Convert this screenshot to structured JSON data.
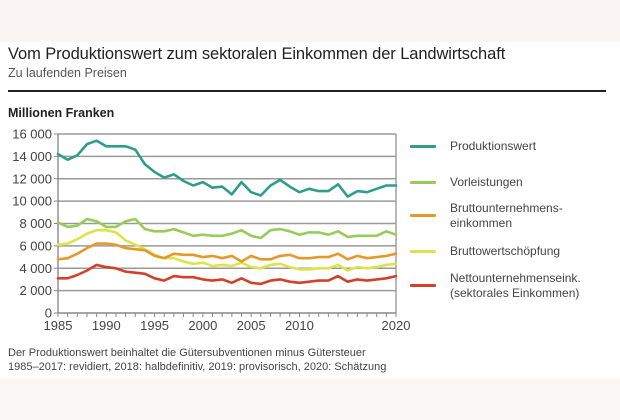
{
  "header": {
    "title": "Vom Produktionswert zum sektoralen Einkommen der Landwirtschaft",
    "subtitle": "Zu laufenden Preisen",
    "unit": "Millionen Franken"
  },
  "footnotes": [
    "Der Produktionswert beinhaltet die Gütersubventionen minus Gütersteuer",
    "1985–2017: revidiert, 2018: halbdefinitiv, 2019: provisorisch, 2020: Schätzung"
  ],
  "chart_data": {
    "type": "line",
    "title": "Vom Produktionswert zum sektoralen Einkommen der Landwirtschaft",
    "subtitle": "Zu laufenden Preisen",
    "xlabel": "",
    "ylabel": "Millionen Franken",
    "xlim": [
      1985,
      2020
    ],
    "ylim": [
      0,
      16000
    ],
    "grid": true,
    "legend_position": "right",
    "x": [
      1985,
      1986,
      1987,
      1988,
      1989,
      1990,
      1991,
      1992,
      1993,
      1994,
      1995,
      1996,
      1997,
      1998,
      1999,
      2000,
      2001,
      2002,
      2003,
      2004,
      2005,
      2006,
      2007,
      2008,
      2009,
      2010,
      2011,
      2012,
      2013,
      2014,
      2015,
      2016,
      2017,
      2018,
      2019,
      2020
    ],
    "x_ticks": [
      {
        "value": 1985,
        "label": "1985"
      },
      {
        "value": 1990,
        "label": "1990"
      },
      {
        "value": 1995,
        "label": "1995"
      },
      {
        "value": 2000,
        "label": "2000"
      },
      {
        "value": 2005,
        "label": "2005"
      },
      {
        "value": 2010,
        "label": "2010"
      },
      {
        "value": 2020,
        "label": "2020"
      }
    ],
    "y_ticks": [
      {
        "value": 0,
        "label": "0"
      },
      {
        "value": 2000,
        "label": "2 000"
      },
      {
        "value": 4000,
        "label": "4 000"
      },
      {
        "value": 6000,
        "label": "6 000"
      },
      {
        "value": 8000,
        "label": "8 000"
      },
      {
        "value": 10000,
        "label": "10 000"
      },
      {
        "value": 12000,
        "label": "12 000"
      },
      {
        "value": 14000,
        "label": "14 000"
      },
      {
        "value": 16000,
        "label": "16 000"
      }
    ],
    "series": [
      {
        "name": "Produktionswert",
        "legend_label": "Produktionswert",
        "color": "#2e9e8a",
        "values": [
          14200,
          13700,
          14100,
          15100,
          15400,
          14900,
          14900,
          14900,
          14600,
          13300,
          12600,
          12100,
          12400,
          11800,
          11400,
          11700,
          11200,
          11300,
          10600,
          11700,
          10800,
          10500,
          11400,
          11900,
          11300,
          10800,
          11100,
          10900,
          10900,
          11500,
          10400,
          10900,
          10800,
          11100,
          11400,
          11400
        ]
      },
      {
        "name": "Vorleistungen",
        "legend_label": "Vorleistungen",
        "color": "#97cc5a",
        "values": [
          8100,
          7700,
          7800,
          8400,
          8200,
          7700,
          7700,
          8200,
          8400,
          7500,
          7300,
          7300,
          7500,
          7200,
          6900,
          7000,
          6900,
          6900,
          7100,
          7400,
          6900,
          6700,
          7400,
          7500,
          7300,
          7000,
          7200,
          7200,
          7000,
          7300,
          6800,
          6900,
          6900,
          6900,
          7300,
          7000
        ]
      },
      {
        "name": "Bruttounternehmenseinkommen",
        "legend_label": "Bruttounternehmens-\neinkommen",
        "color": "#e39a2a",
        "values": [
          4800,
          4900,
          5300,
          5800,
          6200,
          6200,
          6100,
          5800,
          5700,
          5600,
          5100,
          4900,
          5300,
          5200,
          5200,
          5000,
          5100,
          4900,
          5100,
          4600,
          5100,
          4800,
          4800,
          5100,
          5200,
          4900,
          4900,
          5000,
          5000,
          5300,
          4800,
          5100,
          4900,
          5000,
          5100,
          5300
        ]
      },
      {
        "name": "Bruttowertschöpfung",
        "legend_label": "Bruttowertschöpfung",
        "color": "#dde44a",
        "values": [
          6100,
          6200,
          6600,
          7100,
          7400,
          7400,
          7200,
          6500,
          6100,
          5700,
          5200,
          4900,
          4900,
          4600,
          4400,
          4500,
          4200,
          4300,
          4200,
          4500,
          4100,
          4000,
          4300,
          4400,
          4100,
          3900,
          3900,
          4000,
          4000,
          4300,
          3800,
          4100,
          4000,
          4100,
          4300,
          4400
        ]
      },
      {
        "name": "Nettounternehmenseinkommen (sektorales Einkommen)",
        "legend_label": "Nettounternehmenseink.\n(sektorales Einkommen)",
        "color": "#d2412a",
        "values": [
          3100,
          3100,
          3400,
          3800,
          4300,
          4100,
          4000,
          3700,
          3600,
          3500,
          3100,
          2900,
          3300,
          3200,
          3200,
          3000,
          2900,
          3000,
          2700,
          3100,
          2700,
          2600,
          2900,
          3000,
          2800,
          2700,
          2800,
          2900,
          2900,
          3300,
          2800,
          3000,
          2900,
          3000,
          3100,
          3300
        ]
      }
    ]
  }
}
